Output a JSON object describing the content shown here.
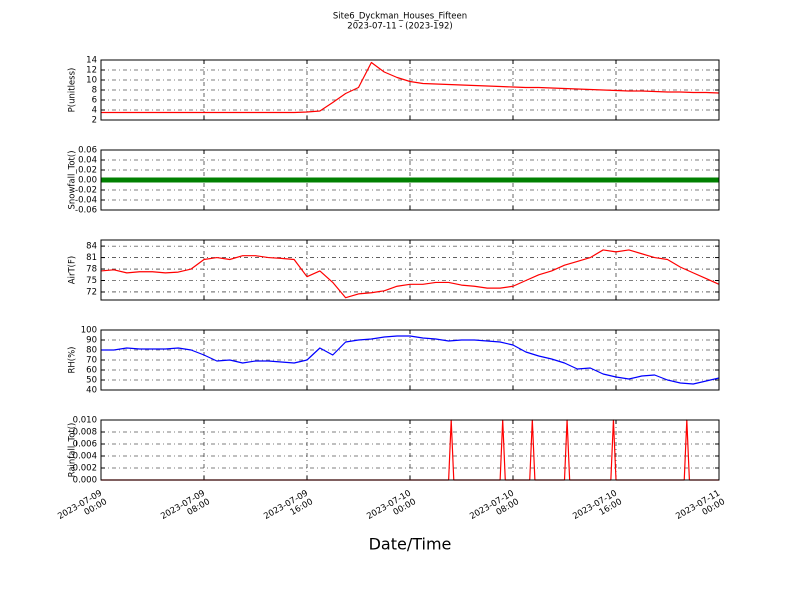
{
  "title": "Site6_Dyckman_Houses_Fifteen",
  "subtitle": "2023-07-11 - (2023-192)",
  "shared_x": {
    "label": "Date/Time",
    "xlim": [
      "2023-07-09 00:00",
      "2023-07-11 00:00"
    ],
    "xticks": [
      {
        "value": "2023-07-09 00:00",
        "label": "2023-07-09 00:00"
      },
      {
        "value": "2023-07-09 08:00",
        "label": "2023-07-09 08:00"
      },
      {
        "value": "2023-07-09 16:00",
        "label": "2023-07-09 16:00"
      },
      {
        "value": "2023-07-10 00:00",
        "label": "2023-07-10 00:00"
      },
      {
        "value": "2023-07-10 08:00",
        "label": "2023-07-10 08:00"
      },
      {
        "value": "2023-07-10 16:00",
        "label": "2023-07-10 16:00"
      },
      {
        "value": "2023-07-11 00:00",
        "label": "2023-07-11 00:00"
      }
    ]
  },
  "chart_data": [
    {
      "type": "line",
      "ylabel": "P(unitless)",
      "color": "#ff0000",
      "grid": true,
      "ylim": [
        2,
        14
      ],
      "yticks": [
        2,
        4,
        6,
        8,
        10,
        12,
        14
      ],
      "x": [
        "2023-07-09 00:00",
        "2023-07-09 01:00",
        "2023-07-09 02:00",
        "2023-07-09 03:00",
        "2023-07-09 04:00",
        "2023-07-09 05:00",
        "2023-07-09 06:00",
        "2023-07-09 07:00",
        "2023-07-09 08:00",
        "2023-07-09 09:00",
        "2023-07-09 10:00",
        "2023-07-09 11:00",
        "2023-07-09 12:00",
        "2023-07-09 13:00",
        "2023-07-09 14:00",
        "2023-07-09 15:00",
        "2023-07-09 16:00",
        "2023-07-09 17:00",
        "2023-07-09 18:00",
        "2023-07-09 19:00",
        "2023-07-09 20:00",
        "2023-07-09 21:00",
        "2023-07-09 22:00",
        "2023-07-09 23:00",
        "2023-07-10 00:00",
        "2023-07-10 01:00",
        "2023-07-10 02:00",
        "2023-07-10 03:00",
        "2023-07-10 04:00",
        "2023-07-10 05:00",
        "2023-07-10 06:00",
        "2023-07-10 07:00",
        "2023-07-10 08:00",
        "2023-07-10 09:00",
        "2023-07-10 10:00",
        "2023-07-10 11:00",
        "2023-07-10 12:00",
        "2023-07-10 13:00",
        "2023-07-10 14:00",
        "2023-07-10 15:00",
        "2023-07-10 16:00",
        "2023-07-10 17:00",
        "2023-07-10 18:00",
        "2023-07-10 19:00",
        "2023-07-10 20:00",
        "2023-07-10 21:00",
        "2023-07-10 22:00",
        "2023-07-10 23:00",
        "2023-07-11 00:00"
      ],
      "values": [
        3.5,
        3.5,
        3.5,
        3.5,
        3.5,
        3.5,
        3.5,
        3.5,
        3.5,
        3.5,
        3.5,
        3.5,
        3.5,
        3.5,
        3.5,
        3.5,
        3.6,
        3.8,
        5.5,
        7.3,
        8.5,
        13.5,
        11.6,
        10.5,
        9.7,
        9.3,
        9.2,
        9.1,
        9.0,
        8.9,
        8.8,
        8.7,
        8.6,
        8.5,
        8.5,
        8.4,
        8.3,
        8.2,
        8.1,
        8.0,
        7.9,
        7.8,
        7.8,
        7.7,
        7.6,
        7.6,
        7.5,
        7.5,
        7.4
      ]
    },
    {
      "type": "line",
      "ylabel": "Snowfall_Tot()",
      "color": "#008000",
      "grid": true,
      "marker": "o",
      "ylim": [
        -0.06,
        0.06
      ],
      "yticks": [
        -0.06,
        -0.04,
        -0.02,
        {
          "value": 0,
          "label": "0.00"
        },
        0.02,
        0.04,
        0.06
      ],
      "x": [
        "2023-07-09 00:00",
        "2023-07-09 02:00",
        "2023-07-09 04:00",
        "2023-07-09 06:00",
        "2023-07-09 08:00",
        "2023-07-09 10:00",
        "2023-07-09 12:00",
        "2023-07-09 14:00",
        "2023-07-09 16:00",
        "2023-07-09 18:00",
        "2023-07-09 20:00",
        "2023-07-09 22:00",
        "2023-07-10 00:00",
        "2023-07-10 02:00",
        "2023-07-10 04:00",
        "2023-07-10 06:00",
        "2023-07-10 08:00",
        "2023-07-10 10:00",
        "2023-07-10 12:00",
        "2023-07-10 14:00",
        "2023-07-10 16:00",
        "2023-07-10 18:00",
        "2023-07-10 20:00",
        "2023-07-10 22:00",
        "2023-07-11 00:00"
      ],
      "values": [
        0,
        0,
        0,
        0,
        0,
        0,
        0,
        0,
        0,
        0,
        0,
        0,
        0,
        0,
        0,
        0,
        0,
        0,
        0,
        0,
        0,
        0,
        0,
        0,
        0
      ]
    },
    {
      "type": "line",
      "ylabel": "AirT(F)",
      "color": "#ff0000",
      "grid": true,
      "ylim": [
        69.9,
        85.6
      ],
      "yticks": [
        72,
        75,
        78,
        81,
        84
      ],
      "x": [
        "2023-07-09 00:00",
        "2023-07-09 01:00",
        "2023-07-09 02:00",
        "2023-07-09 03:00",
        "2023-07-09 04:00",
        "2023-07-09 05:00",
        "2023-07-09 06:00",
        "2023-07-09 07:00",
        "2023-07-09 08:00",
        "2023-07-09 09:00",
        "2023-07-09 10:00",
        "2023-07-09 11:00",
        "2023-07-09 12:00",
        "2023-07-09 13:00",
        "2023-07-09 14:00",
        "2023-07-09 15:00",
        "2023-07-09 16:00",
        "2023-07-09 17:00",
        "2023-07-09 18:00",
        "2023-07-09 19:00",
        "2023-07-09 20:00",
        "2023-07-09 21:00",
        "2023-07-09 22:00",
        "2023-07-09 23:00",
        "2023-07-10 00:00",
        "2023-07-10 01:00",
        "2023-07-10 02:00",
        "2023-07-10 03:00",
        "2023-07-10 04:00",
        "2023-07-10 05:00",
        "2023-07-10 06:00",
        "2023-07-10 07:00",
        "2023-07-10 08:00",
        "2023-07-10 09:00",
        "2023-07-10 10:00",
        "2023-07-10 11:00",
        "2023-07-10 12:00",
        "2023-07-10 13:00",
        "2023-07-10 14:00",
        "2023-07-10 15:00",
        "2023-07-10 16:00",
        "2023-07-10 17:00",
        "2023-07-10 18:00",
        "2023-07-10 19:00",
        "2023-07-10 20:00",
        "2023-07-10 21:00",
        "2023-07-10 22:00",
        "2023-07-10 23:00",
        "2023-07-11 00:00"
      ],
      "values": [
        77.5,
        77.8,
        77,
        77.3,
        77.3,
        77,
        77.2,
        78,
        80.5,
        81,
        80.5,
        81.5,
        81.5,
        81,
        80.8,
        80.5,
        76,
        77.5,
        74.5,
        70.5,
        71.5,
        71.8,
        72.3,
        73.5,
        74,
        74,
        74.5,
        74.5,
        73.8,
        73.5,
        73,
        73,
        73.5,
        75,
        76.5,
        77.5,
        79,
        80,
        81,
        83,
        82.5,
        83,
        82,
        81,
        80.5,
        78.5,
        77,
        75.5,
        74
      ]
    },
    {
      "type": "line",
      "ylabel": "RH(%)",
      "color": "#0000ff",
      "grid": true,
      "ylim": [
        40,
        100
      ],
      "yticks": [
        40,
        50,
        60,
        70,
        80,
        90,
        100
      ],
      "x": [
        "2023-07-09 00:00",
        "2023-07-09 01:00",
        "2023-07-09 02:00",
        "2023-07-09 03:00",
        "2023-07-09 04:00",
        "2023-07-09 05:00",
        "2023-07-09 06:00",
        "2023-07-09 07:00",
        "2023-07-09 08:00",
        "2023-07-09 09:00",
        "2023-07-09 10:00",
        "2023-07-09 11:00",
        "2023-07-09 12:00",
        "2023-07-09 13:00",
        "2023-07-09 14:00",
        "2023-07-09 15:00",
        "2023-07-09 16:00",
        "2023-07-09 17:00",
        "2023-07-09 18:00",
        "2023-07-09 19:00",
        "2023-07-09 20:00",
        "2023-07-09 21:00",
        "2023-07-09 22:00",
        "2023-07-09 23:00",
        "2023-07-10 00:00",
        "2023-07-10 01:00",
        "2023-07-10 02:00",
        "2023-07-10 03:00",
        "2023-07-10 04:00",
        "2023-07-10 05:00",
        "2023-07-10 06:00",
        "2023-07-10 07:00",
        "2023-07-10 08:00",
        "2023-07-10 09:00",
        "2023-07-10 10:00",
        "2023-07-10 11:00",
        "2023-07-10 12:00",
        "2023-07-10 13:00",
        "2023-07-10 14:00",
        "2023-07-10 15:00",
        "2023-07-10 16:00",
        "2023-07-10 17:00",
        "2023-07-10 18:00",
        "2023-07-10 19:00",
        "2023-07-10 20:00",
        "2023-07-10 21:00",
        "2023-07-10 22:00",
        "2023-07-10 23:00",
        "2023-07-11 00:00"
      ],
      "values": [
        80,
        80,
        82,
        81,
        81,
        81,
        82,
        80,
        75,
        69,
        70,
        67,
        69,
        69,
        68,
        67,
        70,
        82,
        75,
        88,
        90,
        91,
        93,
        94,
        94,
        92,
        91,
        89,
        90,
        90,
        89,
        88,
        85,
        78,
        74,
        71,
        67,
        61,
        62,
        56,
        53,
        51,
        54,
        55,
        50,
        47,
        46,
        49,
        52
      ]
    },
    {
      "type": "line",
      "ylabel": "Rainfall_Tot()",
      "color": "#ff0000",
      "grid": true,
      "ylim": [
        0,
        0.01
      ],
      "yticks": [
        {
          "value": 0,
          "label": "0.000"
        },
        0.002,
        0.004,
        0.006,
        0.008,
        {
          "value": 0.01,
          "label": "0.010"
        }
      ],
      "x": [
        "2023-07-09 00:00",
        "2023-07-10 03:00",
        "2023-07-10 03:12",
        "2023-07-10 03:24",
        "2023-07-10 07:00",
        "2023-07-10 07:12",
        "2023-07-10 07:24",
        "2023-07-10 09:18",
        "2023-07-10 09:30",
        "2023-07-10 09:42",
        "2023-07-10 12:00",
        "2023-07-10 12:12",
        "2023-07-10 12:24",
        "2023-07-10 15:36",
        "2023-07-10 15:48",
        "2023-07-10 16:00",
        "2023-07-10 21:18",
        "2023-07-10 21:30",
        "2023-07-10 21:42",
        "2023-07-11 00:00"
      ],
      "values": [
        0,
        0,
        0.01,
        0,
        0,
        0.01,
        0,
        0,
        0.01,
        0,
        0,
        0.01,
        0,
        0,
        0.01,
        0,
        0,
        0.01,
        0,
        0
      ]
    }
  ]
}
